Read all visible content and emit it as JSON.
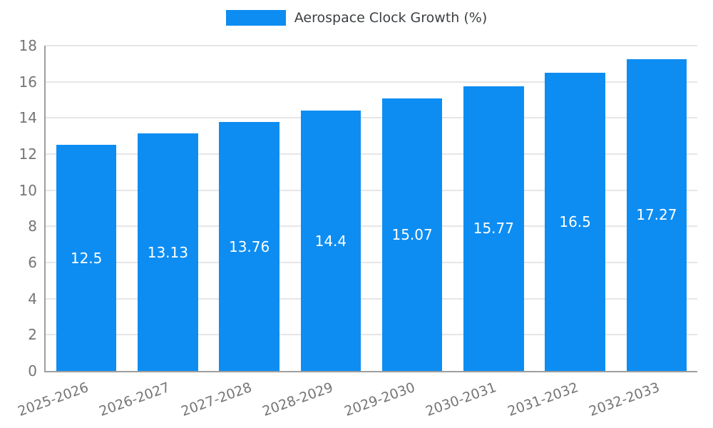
{
  "legend": {
    "label": "Aerospace Clock Growth (%)"
  },
  "colors": {
    "bar": "#0d8df2",
    "grid": "#e6e6e6",
    "axis": "#9e9e9e",
    "tick_text": "#757575",
    "legend_text": "#3c4043",
    "value_label": "#ffffff"
  },
  "chart_data": {
    "type": "bar",
    "title": "Aerospace Clock Growth (%)",
    "categories": [
      "2025-2026",
      "2026-2027",
      "2027-2028",
      "2028-2029",
      "2029-2030",
      "2030-2031",
      "2031-2032",
      "2032-2033"
    ],
    "values": [
      12.5,
      13.13,
      13.76,
      14.4,
      15.07,
      15.77,
      16.5,
      17.27
    ],
    "xlabel": "",
    "ylabel": "",
    "ylim": [
      0,
      18
    ],
    "ytick_step": 2,
    "yticks": [
      0,
      2,
      4,
      6,
      8,
      10,
      12,
      14,
      16,
      18
    ],
    "grid": true,
    "legend_position": "top",
    "value_labels": "centered-in-bar"
  }
}
